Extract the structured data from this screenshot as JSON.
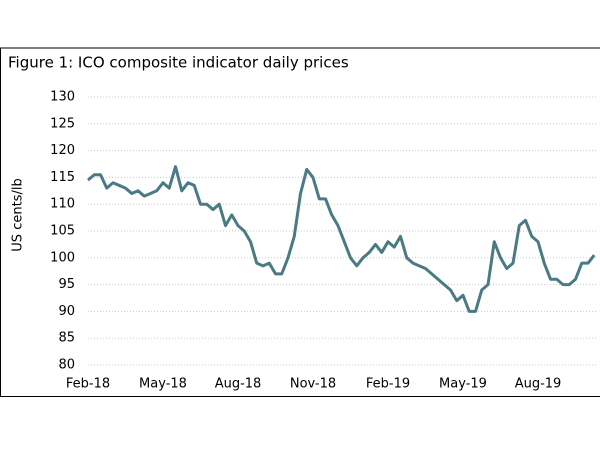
{
  "chart_data": {
    "type": "line",
    "title": "Figure 1: ICO composite indicator daily prices",
    "y_label": "US cents/lb",
    "categories": [
      "Feb-18",
      null,
      null,
      null,
      null,
      null,
      null,
      null,
      null,
      null,
      null,
      null,
      "May-18",
      null,
      null,
      null,
      null,
      null,
      null,
      null,
      null,
      null,
      null,
      null,
      "Aug-18",
      null,
      null,
      null,
      null,
      null,
      null,
      null,
      null,
      null,
      null,
      null,
      "Nov-18",
      null,
      null,
      null,
      null,
      null,
      null,
      null,
      null,
      null,
      null,
      null,
      "Feb-19",
      null,
      null,
      null,
      null,
      null,
      null,
      null,
      null,
      null,
      null,
      null,
      "May-19",
      null,
      null,
      null,
      null,
      null,
      null,
      null,
      null,
      null,
      null,
      null,
      "Aug-19",
      null,
      null,
      null,
      null,
      null,
      null,
      null,
      null,
      null
    ],
    "series": [
      {
        "color": "#4a7a83",
        "values": [
          114.5,
          115.5,
          115.5,
          113,
          114,
          113.5,
          113,
          112,
          112.5,
          111.5,
          112,
          112.5,
          114,
          113,
          117,
          112.5,
          114,
          113.5,
          110,
          110,
          109,
          110,
          106,
          108,
          106,
          105,
          103,
          99,
          98.5,
          99,
          97,
          97,
          100,
          104,
          112,
          116.5,
          115,
          111,
          111,
          108,
          106,
          103,
          100,
          98.5,
          100,
          101,
          102.5,
          101,
          103,
          102,
          104,
          100,
          99,
          98.5,
          98,
          97,
          96,
          95,
          94,
          92,
          93,
          90,
          90,
          94,
          95,
          103,
          100,
          98,
          99,
          106,
          107,
          104,
          103,
          99,
          96,
          96,
          95,
          95,
          96,
          99,
          99,
          100.5
        ]
      }
    ],
    "ylim": [
      80,
      130
    ],
    "yticks": [
      80,
      85,
      90,
      95,
      100,
      105,
      110,
      115,
      120,
      125,
      130
    ],
    "grid": true
  }
}
